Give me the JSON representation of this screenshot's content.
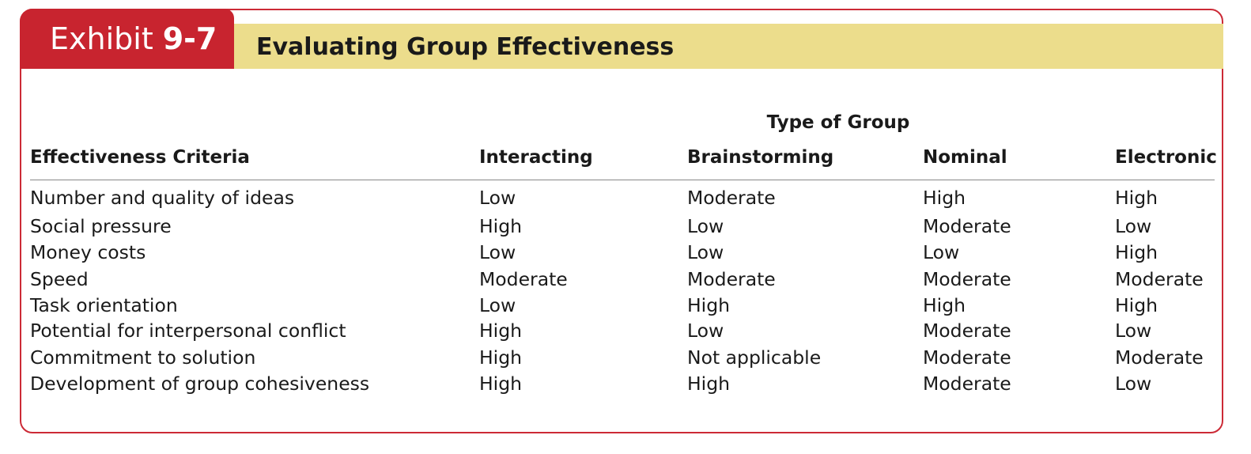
{
  "exhibit": {
    "label": "Exhibit",
    "number": "9-7",
    "title": "Evaluating Group Effectiveness"
  },
  "colors": {
    "tab_red": "#c8242f",
    "frame_red": "#cc2a36",
    "title_band": "#ecdd8c"
  },
  "table": {
    "group_header": "Type of Group",
    "columns": [
      "Effectiveness Criteria",
      "Interacting",
      "Brainstorming",
      "Nominal",
      "Electronic"
    ],
    "rows": [
      [
        "Number and quality of ideas",
        "Low",
        "Moderate",
        "High",
        "High"
      ],
      [
        "Social pressure",
        "High",
        "Low",
        "Moderate",
        "Low"
      ],
      [
        "Money costs",
        "Low",
        "Low",
        "Low",
        "High"
      ],
      [
        "Speed",
        "Moderate",
        "Moderate",
        "Moderate",
        "Moderate"
      ],
      [
        "Task orientation",
        "Low",
        "High",
        "High",
        "High"
      ],
      [
        "Potential for interpersonal conflict",
        "High",
        "Low",
        "Moderate",
        "Low"
      ],
      [
        "Commitment to solution",
        "High",
        "Not applicable",
        "Moderate",
        "Moderate"
      ],
      [
        "Development of group cohesiveness",
        "High",
        "High",
        "Moderate",
        "Low"
      ]
    ]
  }
}
